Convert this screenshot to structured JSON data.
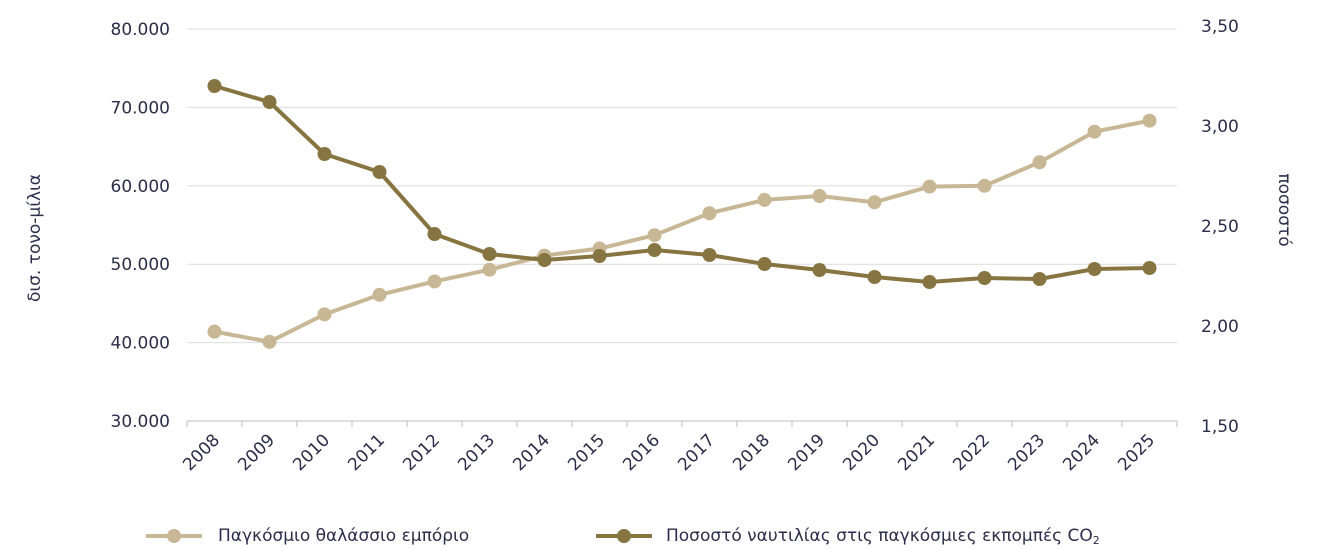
{
  "chart_data": {
    "type": "line",
    "x": [
      "2008",
      "2009",
      "2010",
      "2011",
      "2012",
      "2013",
      "2014",
      "2015",
      "2016",
      "2017",
      "2018",
      "2019",
      "2020",
      "2021",
      "2022",
      "2023",
      "2024",
      "2025"
    ],
    "ylabel_left": "δισ. τονο-μίλια",
    "ylabel_right": "ποσοστό",
    "yleft_ticks": [
      "80.000",
      "70.000",
      "60.000",
      "50.000",
      "40.000",
      "30.000"
    ],
    "yright_ticks": [
      "3,50",
      "3,00",
      "2,50",
      "2,00",
      "1,50"
    ],
    "yleft_lim": [
      30000,
      80000
    ],
    "yright_lim": [
      1.5,
      3.5
    ],
    "grid": true,
    "series": [
      {
        "name": "Παγκόσμιο θαλάσσιο εμπόριο",
        "axis": "left",
        "color": "#c8b795",
        "values": [
          41400,
          40100,
          43600,
          46100,
          47800,
          49300,
          51100,
          52000,
          53700,
          56500,
          58200,
          58700,
          57900,
          59900,
          60000,
          63000,
          66900,
          68300
        ]
      },
      {
        "name": "Ποσοστό ναυτιλίας στις παγκόσμιες εκπομπές CO",
        "name_subscript": "2",
        "axis": "right",
        "color": "#867540",
        "values": [
          3.2,
          3.12,
          2.86,
          2.77,
          2.46,
          2.36,
          2.33,
          2.35,
          2.38,
          2.355,
          2.31,
          2.28,
          2.245,
          2.22,
          2.24,
          2.235,
          2.285,
          2.29
        ]
      }
    ],
    "legend_position": "bottom"
  }
}
